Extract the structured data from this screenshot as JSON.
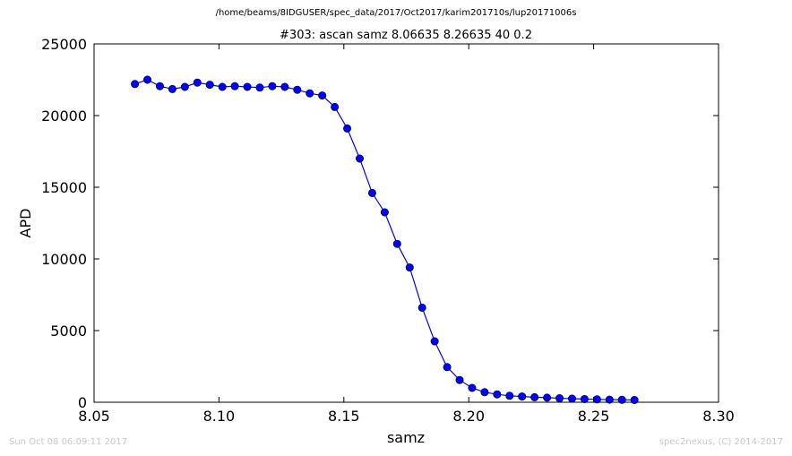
{
  "header": {
    "path": "/home/beams/8IDGUSER/spec_data/2017/Oct2017/karim201710s/lup20171006s"
  },
  "footer": {
    "timestamp": "Sun Oct 08 06:09:11 2017",
    "credit": "spec2nexus, (C) 2014-2017"
  },
  "chart_data": {
    "type": "line",
    "title": "#303: ascan  samz 8.06635 8.26635  40 0.2",
    "xlabel": "samz",
    "ylabel": "APD",
    "xlim": [
      8.05,
      8.3
    ],
    "ylim": [
      0,
      25000
    ],
    "xticks": [
      "8.05",
      "8.10",
      "8.15",
      "8.20",
      "8.25",
      "8.30"
    ],
    "yticks": [
      "0",
      "5000",
      "10000",
      "15000",
      "20000",
      "25000"
    ],
    "grid": false,
    "legend": "none",
    "line_color": "#0000ff",
    "marker_color": "#0000ff",
    "x": [
      8.06635,
      8.07135,
      8.07635,
      8.08135,
      8.08635,
      8.09135,
      8.09635,
      8.10135,
      8.10635,
      8.11135,
      8.11635,
      8.12135,
      8.12635,
      8.13135,
      8.13635,
      8.14135,
      8.14635,
      8.15135,
      8.15635,
      8.16135,
      8.16635,
      8.17135,
      8.17635,
      8.18135,
      8.18635,
      8.19135,
      8.19635,
      8.20135,
      8.20635,
      8.21135,
      8.21635,
      8.22135,
      8.22635,
      8.23135,
      8.23635,
      8.24135,
      8.24635,
      8.25135,
      8.25635,
      8.26135,
      8.26635
    ],
    "y": [
      22200,
      22500,
      22050,
      21850,
      22000,
      22300,
      22150,
      22000,
      22050,
      22000,
      21950,
      22050,
      22000,
      21800,
      21550,
      21400,
      20600,
      19100,
      17000,
      14600,
      13250,
      11050,
      9400,
      6600,
      4250,
      2450,
      1550,
      1000,
      700,
      550,
      450,
      400,
      350,
      320,
      280,
      250,
      220,
      200,
      180,
      170,
      160
    ]
  }
}
